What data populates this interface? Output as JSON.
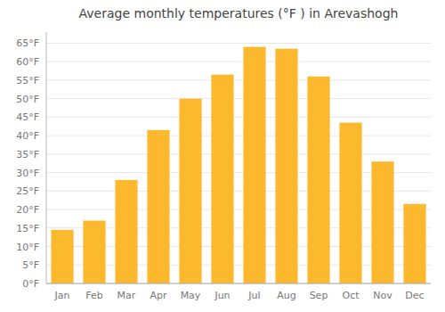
{
  "chart_data": {
    "type": "bar",
    "title": "Average monthly temperatures (°F ) in Arevashogh",
    "categories": [
      "Jan",
      "Feb",
      "Mar",
      "Apr",
      "May",
      "Jun",
      "Jul",
      "Aug",
      "Sep",
      "Oct",
      "Nov",
      "Dec"
    ],
    "values": [
      14.5,
      17.0,
      28.0,
      41.5,
      50.0,
      56.5,
      64.0,
      63.5,
      56.0,
      43.5,
      33.0,
      21.5
    ],
    "color": "#FDB92E",
    "ylim": [
      0,
      68
    ],
    "yticks": [
      {
        "value": 0,
        "label": "0°F"
      },
      {
        "value": 5,
        "label": "5°F"
      },
      {
        "value": 10,
        "label": "10°F"
      },
      {
        "value": 15,
        "label": "15°F"
      },
      {
        "value": 20,
        "label": "20°F"
      },
      {
        "value": 25,
        "label": "25°F"
      },
      {
        "value": 30,
        "label": "30°F"
      },
      {
        "value": 35,
        "label": "35°F"
      },
      {
        "value": 40,
        "label": "40°F"
      },
      {
        "value": 45,
        "label": "45°F"
      },
      {
        "value": 50,
        "label": "50°F"
      },
      {
        "value": 55,
        "label": "55°F"
      },
      {
        "value": 60,
        "label": "60°F"
      },
      {
        "value": 65,
        "label": "65°F"
      }
    ],
    "grid": true
  }
}
